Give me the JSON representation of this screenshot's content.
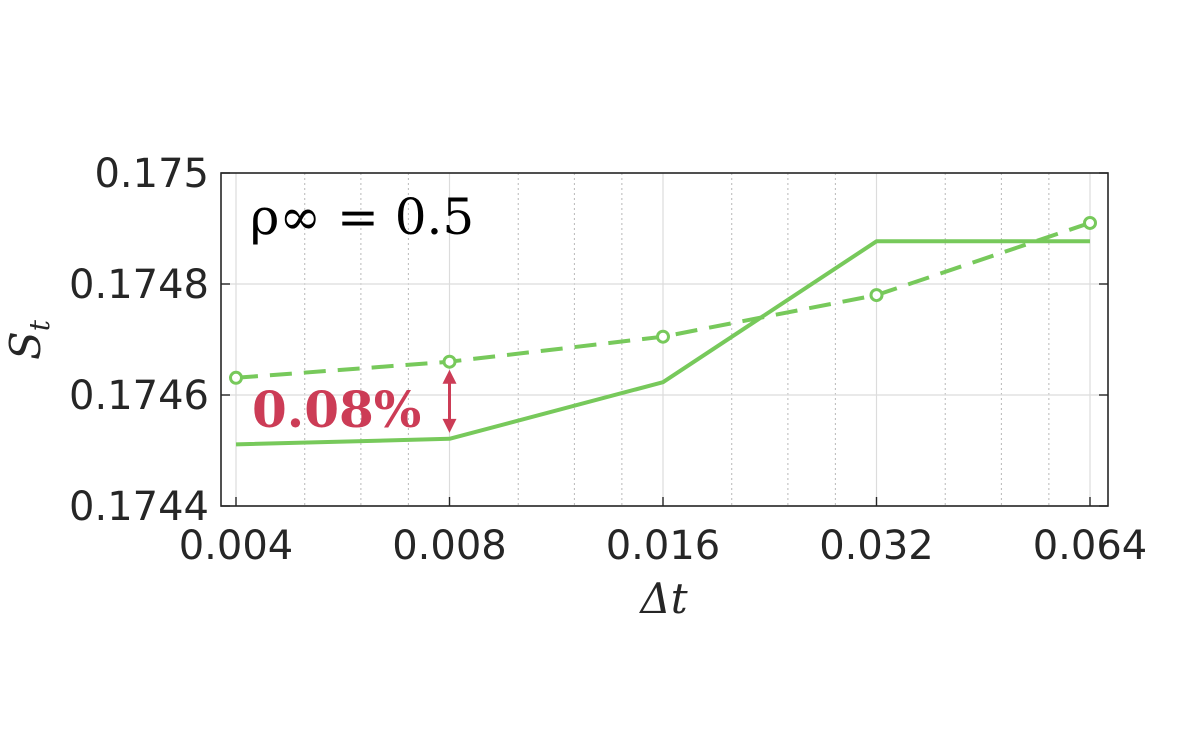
{
  "chart_data": {
    "type": "line",
    "title": "",
    "xlabel": "Δt",
    "ylabel": "S_t",
    "ylabel_main": "S",
    "ylabel_sub": "t",
    "xscale": "log2",
    "x": [
      0.004,
      0.008,
      0.016,
      0.032,
      0.064
    ],
    "xlim": [
      0.004,
      0.064
    ],
    "ylim": [
      0.1744,
      0.175
    ],
    "xticks": [
      0.004,
      0.008,
      0.016,
      0.032,
      0.064
    ],
    "xtick_labels": [
      "0.004",
      "0.008",
      "0.016",
      "0.032",
      "0.064"
    ],
    "yticks": [
      0.1744,
      0.1746,
      0.1748,
      0.175
    ],
    "ytick_labels": [
      "0.1744",
      "0.1746",
      "0.1748",
      "0.175"
    ],
    "grid": true,
    "legend": "none",
    "series": [
      {
        "style": "solid",
        "color": "#77c95b",
        "values": [
          0.174511,
          0.174521,
          0.174623,
          0.174877,
          0.174877
        ]
      },
      {
        "style": "dashed",
        "color": "#77c95b",
        "marker": "circle",
        "values": [
          0.174631,
          0.17466,
          0.174705,
          0.17478,
          0.17491
        ]
      }
    ],
    "annotations": {
      "parameter": "ρ∞ = 0.5",
      "difference_label": "0.08%",
      "difference_color": "#cc3c56",
      "difference_at_x": 0.008
    }
  }
}
